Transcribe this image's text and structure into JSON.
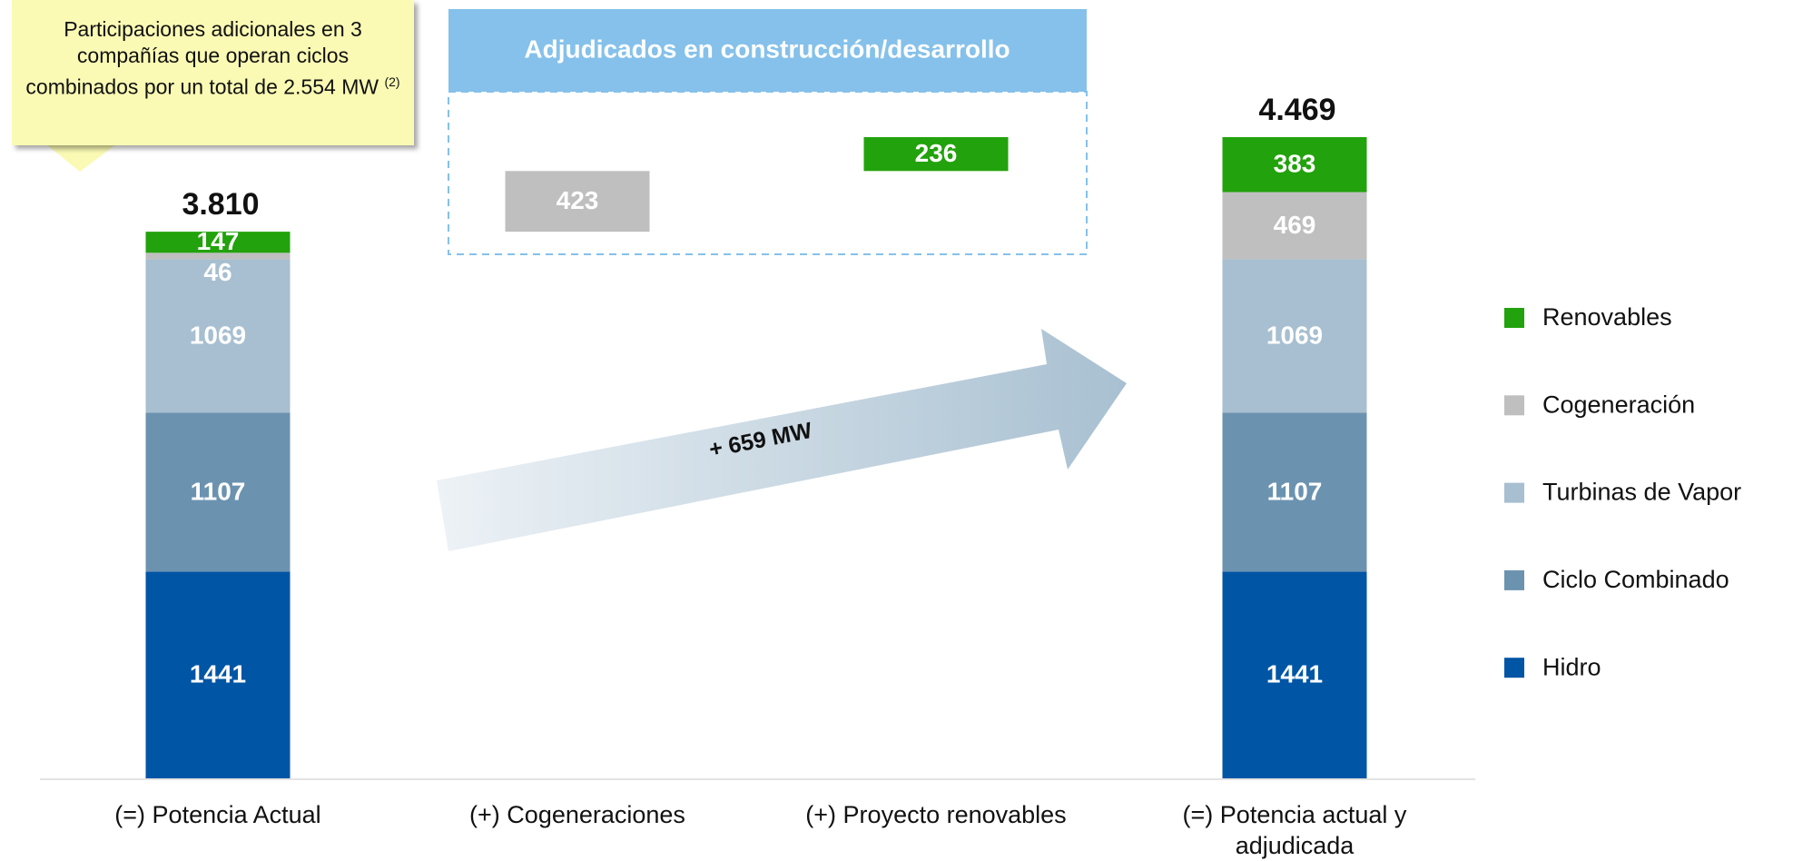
{
  "chart_data": {
    "type": "bar",
    "stacked": true,
    "waterfall": true,
    "categories": [
      "(=) Potencia Actual",
      "(+) Cogeneraciones",
      "(+) Proyecto renovables",
      "(=) Potencia actual y adjudicada"
    ],
    "series": [
      {
        "name": "Hidro",
        "color": "#0055a5",
        "values": [
          1441,
          null,
          null,
          1441
        ]
      },
      {
        "name": "Ciclo Combinado",
        "color": "#6b93b0",
        "values": [
          1107,
          null,
          null,
          1107
        ]
      },
      {
        "name": "Turbinas de Vapor",
        "color": "#a7bfd0",
        "values": [
          1069,
          null,
          null,
          1069
        ]
      },
      {
        "name": "Cogeneración",
        "color": "#bfbfbf",
        "values": [
          46,
          423,
          null,
          469
        ]
      },
      {
        "name": "Renovables",
        "color": "#22a20c",
        "values": [
          147,
          null,
          236,
          383
        ]
      }
    ],
    "totals": {
      "values": [
        3810,
        null,
        null,
        4469
      ],
      "value_labels": [
        "3.810",
        null,
        null,
        "4.469"
      ]
    },
    "legend": "right",
    "annotations": {
      "callout": {
        "text": "Participaciones adicionales en 3 compañías que operan ciclos combinados por un total de 2.554 MW",
        "note": "(2)"
      },
      "box_title": "Adjudicados en construcción/desarrollo",
      "arrow_label": "+ 659 MW"
    }
  }
}
